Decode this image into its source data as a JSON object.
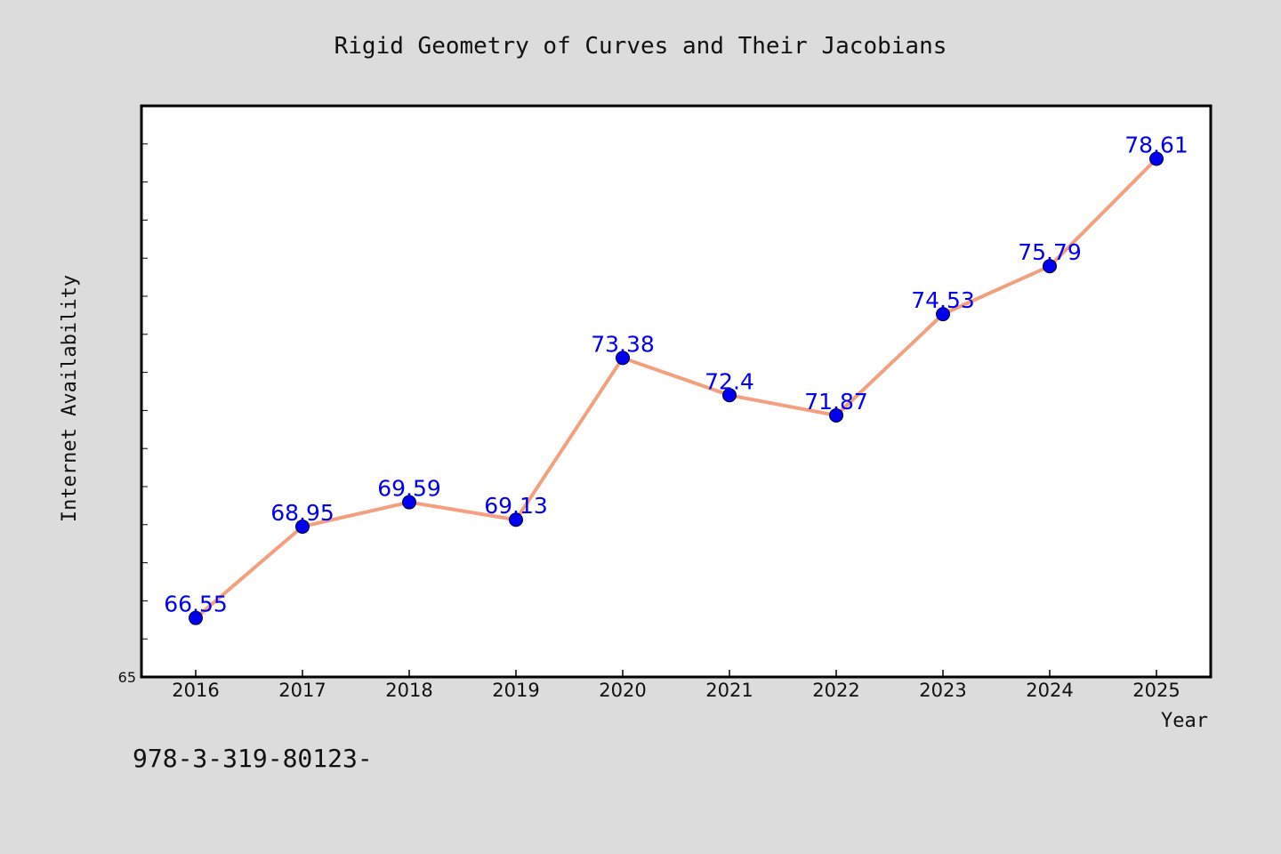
{
  "chart_data": {
    "type": "line",
    "title": "Rigid Geometry of Curves and Their Jacobians",
    "xlabel": "Year",
    "ylabel": "Internet Availability",
    "categories": [
      "2016",
      "2017",
      "2018",
      "2019",
      "2020",
      "2021",
      "2022",
      "2023",
      "2024",
      "2025"
    ],
    "series": [
      {
        "values": [
          66.55,
          68.95,
          69.59,
          69.13,
          73.38,
          72.4,
          71.87,
          74.53,
          75.79,
          78.61
        ],
        "data_labels": [
          "66.55",
          "68.95",
          "69.59",
          "69.13",
          "73.38",
          "72.4",
          "71.87",
          "74.53",
          "75.79",
          "78.61"
        ]
      }
    ],
    "ylim": [
      65,
      80
    ],
    "y_tick_step": 1,
    "y_tick_labels": [
      "65"
    ],
    "grid": false,
    "legend": "none",
    "colors": {
      "line": "#f4a07f",
      "marker": "#0000ee",
      "data_label": "#0000ee",
      "background": "#dcdcdc",
      "plot_background": "#ffffff"
    }
  },
  "footer_text": "978-3-319-80123-"
}
